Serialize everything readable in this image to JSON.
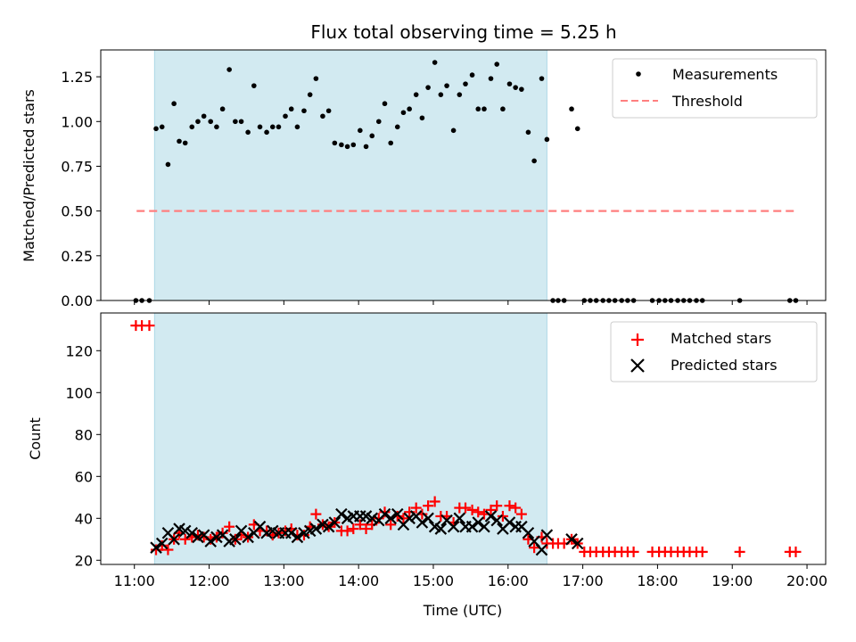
{
  "chart_data": {
    "type": "scatter",
    "title": "Flux total observing time = 5.25 h",
    "xlabel": "Time (UTC)",
    "x_ticks": [
      11,
      12,
      13,
      14,
      15,
      16,
      17,
      18,
      19,
      20
    ],
    "x_tick_labels": [
      "11:00",
      "12:00",
      "13:00",
      "14:00",
      "15:00",
      "16:00",
      "17:00",
      "18:00",
      "19:00",
      "20:00"
    ],
    "xlim": [
      10.55,
      20.25
    ],
    "shaded_interval": {
      "start": 11.27,
      "end": 16.52,
      "color": "#add8e6"
    },
    "panels": [
      {
        "ylabel": "Matched/Predicted stars",
        "ylim": [
          0,
          1.4
        ],
        "y_ticks": [
          0.0,
          0.25,
          0.5,
          0.75,
          1.0,
          1.25
        ],
        "y_tick_labels": [
          "0.00",
          "0.25",
          "0.50",
          "0.75",
          "1.00",
          "1.25"
        ],
        "legend_position": "top-right",
        "series": [
          {
            "name": "Measurements",
            "marker": "dot",
            "color": "#000000",
            "x": [
              11.02,
              11.1,
              11.2,
              11.29,
              11.37,
              11.45,
              11.53,
              11.6,
              11.68,
              11.77,
              11.85,
              11.93,
              12.02,
              12.1,
              12.18,
              12.27,
              12.35,
              12.43,
              12.52,
              12.6,
              12.68,
              12.77,
              12.85,
              12.93,
              13.02,
              13.1,
              13.18,
              13.27,
              13.35,
              13.43,
              13.52,
              13.6,
              13.68,
              13.77,
              13.85,
              13.93,
              14.02,
              14.1,
              14.18,
              14.27,
              14.35,
              14.43,
              14.52,
              14.6,
              14.68,
              14.77,
              14.85,
              14.93,
              15.02,
              15.1,
              15.18,
              15.27,
              15.35,
              15.43,
              15.52,
              15.6,
              15.68,
              15.77,
              15.85,
              15.93,
              16.02,
              16.1,
              16.18,
              16.27,
              16.35,
              16.45,
              16.52,
              16.6,
              16.67,
              16.75,
              16.85,
              16.93,
              17.02,
              17.1,
              17.18,
              17.27,
              17.35,
              17.43,
              17.52,
              17.6,
              17.68,
              17.93,
              18.02,
              18.1,
              18.18,
              18.27,
              18.35,
              18.43,
              18.52,
              18.6,
              19.1,
              19.77,
              19.85
            ],
            "y": [
              0.0,
              0.0,
              0.0,
              0.96,
              0.97,
              0.76,
              1.1,
              0.89,
              0.88,
              0.97,
              1.0,
              1.03,
              1.0,
              0.97,
              1.07,
              1.29,
              1.0,
              1.0,
              0.94,
              1.2,
              0.97,
              0.94,
              0.97,
              0.97,
              1.03,
              1.07,
              0.97,
              1.06,
              1.15,
              1.24,
              1.03,
              1.06,
              0.88,
              0.87,
              0.86,
              0.87,
              0.95,
              0.86,
              0.92,
              1.0,
              1.1,
              0.88,
              0.97,
              1.05,
              1.07,
              1.15,
              1.02,
              1.19,
              1.33,
              1.15,
              1.2,
              0.95,
              1.15,
              1.21,
              1.26,
              1.07,
              1.07,
              1.24,
              1.32,
              1.07,
              1.21,
              1.19,
              1.18,
              0.94,
              0.78,
              1.24,
              0.9,
              0.0,
              0.0,
              0.0,
              1.07,
              0.96,
              0.0,
              0.0,
              0.0,
              0.0,
              0.0,
              0.0,
              0.0,
              0.0,
              0.0,
              0.0,
              0.0,
              0.0,
              0.0,
              0.0,
              0.0,
              0.0,
              0.0,
              0.0,
              0.0,
              0.0,
              0.0
            ]
          },
          {
            "name": "Threshold",
            "marker": "dashed-line",
            "color": "#ff7f7f",
            "x": [
              11.03,
              19.85
            ],
            "y": [
              0.5,
              0.5
            ]
          }
        ]
      },
      {
        "ylabel": "Count",
        "ylim": [
          18,
          138
        ],
        "y_ticks": [
          20,
          40,
          60,
          80,
          100,
          120
        ],
        "y_tick_labels": [
          "20",
          "40",
          "60",
          "80",
          "100",
          "120"
        ],
        "legend_position": "top-right",
        "series": [
          {
            "name": "Matched stars",
            "marker": "plus",
            "color": "#ff0000",
            "x": [
              11.02,
              11.1,
              11.2,
              11.29,
              11.37,
              11.45,
              11.53,
              11.6,
              11.68,
              11.77,
              11.85,
              11.93,
              12.02,
              12.1,
              12.18,
              12.27,
              12.35,
              12.43,
              12.52,
              12.6,
              12.68,
              12.77,
              12.85,
              12.93,
              13.02,
              13.1,
              13.18,
              13.27,
              13.35,
              13.43,
              13.52,
              13.6,
              13.68,
              13.77,
              13.85,
              13.93,
              14.02,
              14.1,
              14.18,
              14.27,
              14.35,
              14.43,
              14.52,
              14.6,
              14.68,
              14.77,
              14.85,
              14.93,
              15.02,
              15.1,
              15.18,
              15.27,
              15.35,
              15.43,
              15.52,
              15.6,
              15.68,
              15.77,
              15.85,
              15.93,
              16.02,
              16.1,
              16.18,
              16.27,
              16.35,
              16.45,
              16.52,
              16.6,
              16.67,
              16.75,
              16.85,
              16.93,
              17.02,
              17.1,
              17.18,
              17.27,
              17.35,
              17.43,
              17.52,
              17.6,
              17.68,
              17.93,
              18.02,
              18.1,
              18.18,
              18.27,
              18.35,
              18.43,
              18.52,
              18.6,
              19.1,
              19.77,
              19.85
            ],
            "y": [
              132,
              132,
              132,
              25,
              27,
              25,
              30,
              33,
              30,
              31,
              32,
              31,
              30,
              31,
              33,
              36,
              30,
              32,
              31,
              37,
              34,
              34,
              32,
              33,
              34,
              35,
              32,
              32,
              36,
              42,
              37,
              36,
              38,
              34,
              34,
              35,
              37,
              35,
              37,
              40,
              43,
              37,
              41,
              40,
              43,
              45,
              42,
              46,
              48,
              41,
              41,
              38,
              45,
              45,
              44,
              43,
              42,
              44,
              46,
              41,
              46,
              45,
              42,
              30,
              26,
              31,
              28,
              28,
              28,
              28,
              30,
              28,
              24,
              24,
              24,
              24,
              24,
              24,
              24,
              24,
              24,
              24,
              24,
              24,
              24,
              24,
              24,
              24,
              24,
              24,
              24,
              24,
              24
            ]
          },
          {
            "name": "Predicted stars",
            "marker": "x",
            "color": "#000000",
            "x": [
              11.29,
              11.37,
              11.45,
              11.53,
              11.6,
              11.68,
              11.77,
              11.85,
              11.93,
              12.02,
              12.1,
              12.18,
              12.27,
              12.35,
              12.43,
              12.52,
              12.6,
              12.68,
              12.77,
              12.85,
              12.93,
              13.02,
              13.1,
              13.18,
              13.27,
              13.35,
              13.43,
              13.52,
              13.6,
              13.68,
              13.77,
              13.85,
              13.93,
              14.02,
              14.1,
              14.18,
              14.27,
              14.35,
              14.43,
              14.52,
              14.6,
              14.68,
              14.77,
              14.85,
              14.93,
              15.02,
              15.1,
              15.18,
              15.27,
              15.35,
              15.43,
              15.52,
              15.6,
              15.68,
              15.77,
              15.85,
              15.93,
              16.02,
              16.1,
              16.18,
              16.27,
              16.35,
              16.45,
              16.52,
              16.85,
              16.93
            ],
            "y": [
              26,
              28,
              33,
              30,
              35,
              34,
              33,
              31,
              32,
              29,
              31,
              32,
              29,
              30,
              34,
              31,
              33,
              36,
              33,
              34,
              33,
              33,
              33,
              31,
              33,
              34,
              35,
              37,
              36,
              38,
              42,
              40,
              41,
              41,
              41,
              40,
              39,
              42,
              40,
              42,
              37,
              40,
              41,
              38,
              40,
              36,
              35,
              39,
              36,
              40,
              36,
              36,
              38,
              36,
              41,
              39,
              35,
              38,
              36,
              36,
              33,
              29,
              25,
              32,
              30,
              28
            ]
          }
        ]
      }
    ]
  }
}
